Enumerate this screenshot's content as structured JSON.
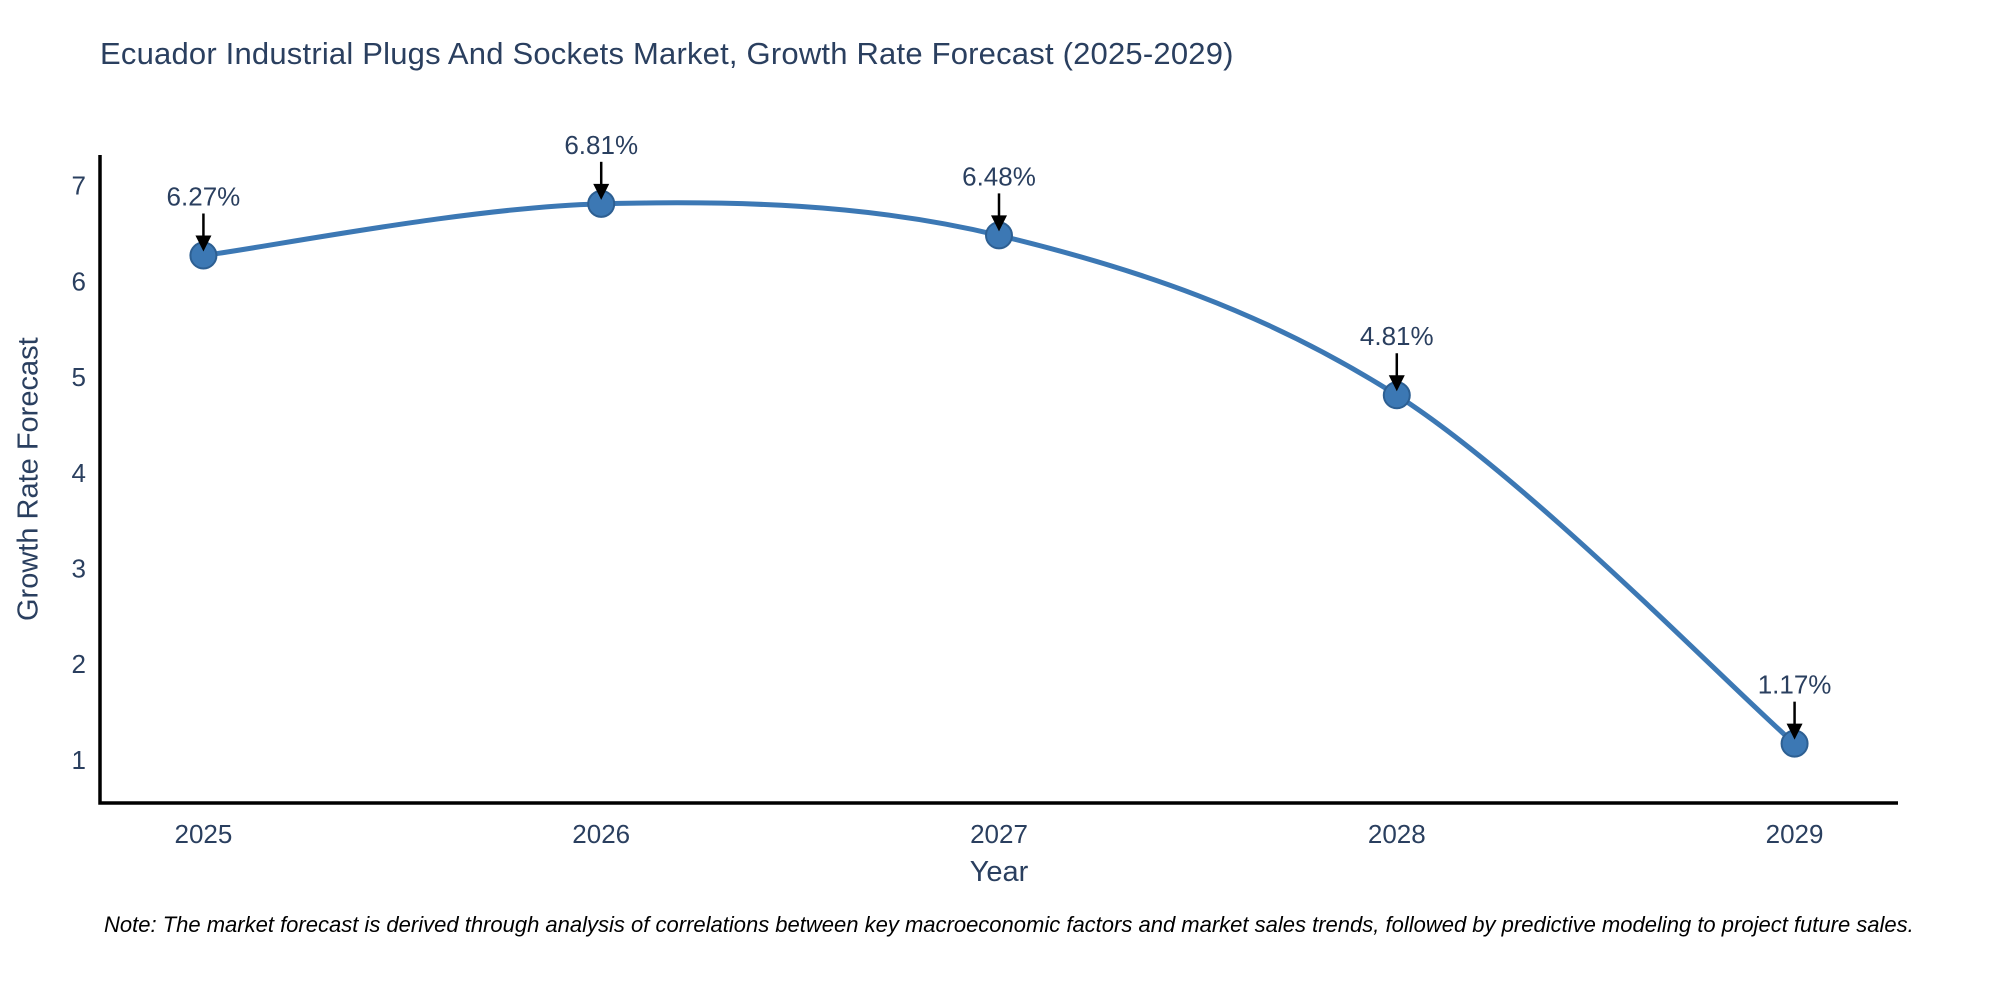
{
  "note": "Note: The market forecast is derived through analysis of correlations between key macroeconomic factors and market sales trends, followed by predictive modeling to project future sales.",
  "chart_data": {
    "type": "line",
    "title": "Ecuador Industrial Plugs And Sockets Market, Growth Rate Forecast (2025-2029)",
    "xlabel": "Year",
    "ylabel": "Growth Rate Forecast",
    "x": [
      2025,
      2026,
      2027,
      2028,
      2029
    ],
    "values": [
      6.27,
      6.81,
      6.48,
      4.81,
      1.17
    ],
    "point_labels": [
      "6.27%",
      "6.81%",
      "6.48%",
      "4.81%",
      "1.17%"
    ],
    "yticks": [
      1,
      2,
      3,
      4,
      5,
      6,
      7
    ],
    "xlim": [
      2024.74,
      2029.26
    ],
    "ylim": [
      0.55,
      7.32
    ],
    "grid": false,
    "legend": "none",
    "colors": {
      "line": "#3c78b4",
      "marker": "#3c78b4",
      "marker_edge": "#2d5f92",
      "axis": "#000000",
      "tick_text": "#2a3f5f",
      "annotation_text": "#2a3f5f",
      "arrow": "#000000",
      "title": "#2a3f5f",
      "note": "#000000",
      "background": "#ffffff"
    }
  }
}
